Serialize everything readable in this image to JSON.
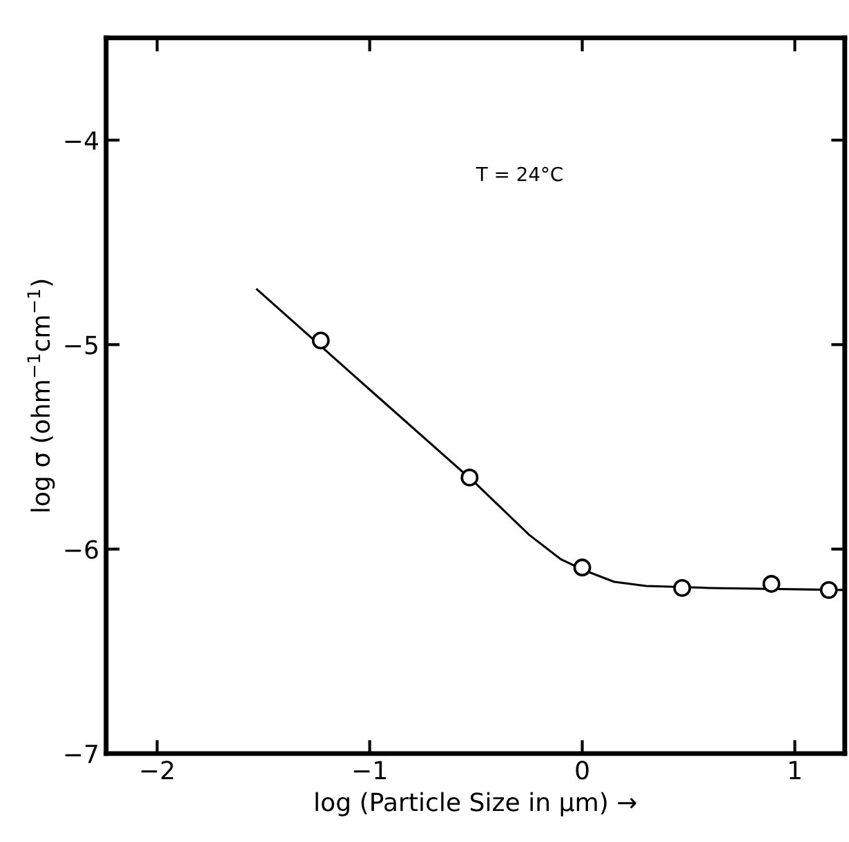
{
  "chart_data": {
    "type": "scatter",
    "xlabel": "log (Particle Size in μm) →",
    "ylabel": "log σ (ohm$^{−1}$cm$^{−1}$)",
    "annotations": [
      "T = 24°C"
    ],
    "xlim": [
      -2.24,
      1.235
    ],
    "ylim": [
      -7,
      -3.5
    ],
    "xticks": [
      -2,
      -1,
      0,
      1
    ],
    "yticks": [
      -7,
      -6,
      -5,
      -4
    ],
    "grid": false,
    "legend": false,
    "series": [
      {
        "color": "#000000",
        "marker": "circle",
        "x": [
          -1.23,
          -0.53,
          0,
          0.47,
          0.89,
          1.16
        ],
        "values": [
          -4.98,
          -5.65,
          -6.09,
          -6.19,
          -6.17,
          -6.2
        ]
      },
      {
        "type": "line",
        "color": "#000000",
        "marker": "none",
        "line_style": "solid",
        "x": [
          -1.53,
          -1.0,
          -0.5,
          -0.25,
          -0.1,
          0,
          0.15,
          0.3,
          0.6,
          1.235
        ],
        "values": [
          -4.73,
          -5.22,
          -5.68,
          -5.93,
          -6.05,
          -6.1,
          -6.16,
          -6.18,
          -6.19,
          -6.2
        ]
      }
    ]
  }
}
